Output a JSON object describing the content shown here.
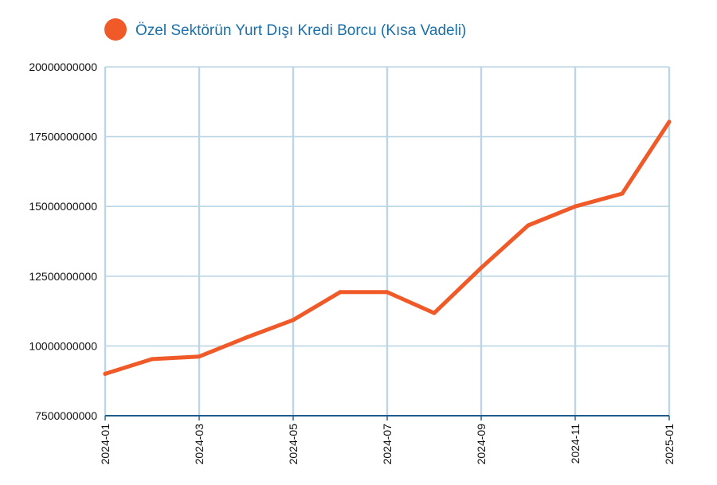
{
  "colors": {
    "series": "#F05A28",
    "grid": "#BCD6E6",
    "baseline": "#1D5C8C",
    "legend_text": "#1A6FA8",
    "tick_text": "#111111"
  },
  "chart_data": {
    "type": "line",
    "title": "",
    "xlabel": "",
    "ylabel": "",
    "legend_position": "top-left",
    "grid": true,
    "ylim": [
      7500000000,
      20000000000
    ],
    "y_ticks": [
      "20000000000",
      "17500000000",
      "15000000000",
      "12500000000",
      "10000000000",
      "7500000000"
    ],
    "y_tick_values": [
      20000000000,
      17500000000,
      15000000000,
      12500000000,
      10000000000,
      7500000000
    ],
    "x_ticks": [
      "2024-01",
      "2024-03",
      "2024-05",
      "2024-07",
      "2024-09",
      "2024-11",
      "2025-01"
    ],
    "x": [
      "2024-01",
      "2024-02",
      "2024-03",
      "2024-04",
      "2024-05",
      "2024-06",
      "2024-07",
      "2024-08",
      "2024-09",
      "2024-10",
      "2024-11",
      "2024-12",
      "2025-01"
    ],
    "series": [
      {
        "name": "Özel Sektörün Yurt Dışı Kredi Borcu (Kısa Vadeli)",
        "values": [
          9000000000,
          9530000000,
          9620000000,
          10300000000,
          10930000000,
          11930000000,
          11930000000,
          11180000000,
          12800000000,
          14320000000,
          15000000000,
          15460000000,
          18030000000
        ]
      }
    ]
  }
}
